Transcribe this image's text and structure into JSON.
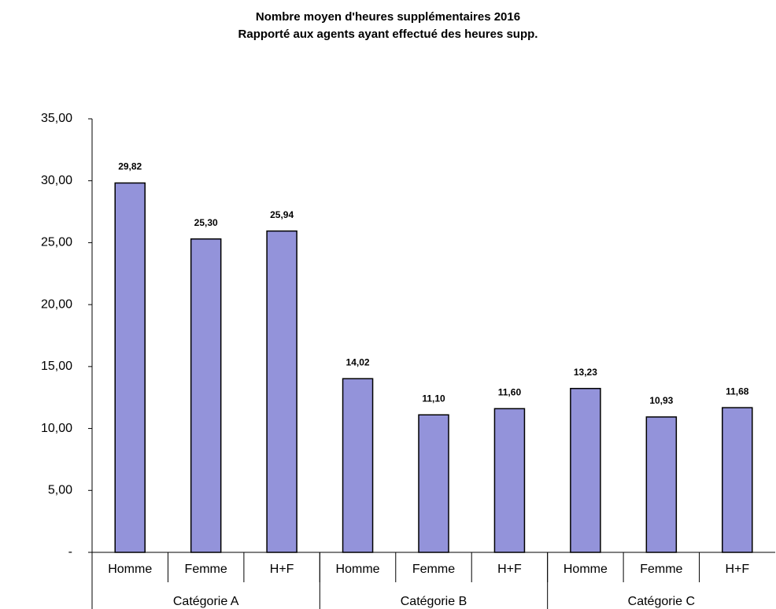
{
  "chart_data": {
    "type": "bar",
    "title": "Nombre moyen d'heures supplémentaires 2016",
    "subtitle": "Rapporté aux agents ayant effectué des heures supp.",
    "categories": [
      "Homme",
      "Femme",
      "H+F",
      "Homme",
      "Femme",
      "H+F",
      "Homme",
      "Femme",
      "H+F"
    ],
    "groups": [
      "Catégorie A",
      "Catégorie B",
      "Catégorie C"
    ],
    "values": [
      29.82,
      25.3,
      25.94,
      14.02,
      11.1,
      11.6,
      13.23,
      10.93,
      11.68
    ],
    "value_labels": [
      "29,82",
      "25,30",
      "25,94",
      "14,02",
      "11,10",
      "11,60",
      "13,23",
      "10,93",
      "11,68"
    ],
    "color": "#9393da",
    "ylim": [
      0,
      35
    ],
    "yticks": [
      {
        "value": 0,
        "label": "-"
      },
      {
        "value": 5,
        "label": "5,00"
      },
      {
        "value": 10,
        "label": "10,00"
      },
      {
        "value": 15,
        "label": "15,00"
      },
      {
        "value": 20,
        "label": "20,00"
      },
      {
        "value": 25,
        "label": "25,00"
      },
      {
        "value": 30,
        "label": "30,00"
      },
      {
        "value": 35,
        "label": "35,00"
      }
    ],
    "grid": false
  }
}
